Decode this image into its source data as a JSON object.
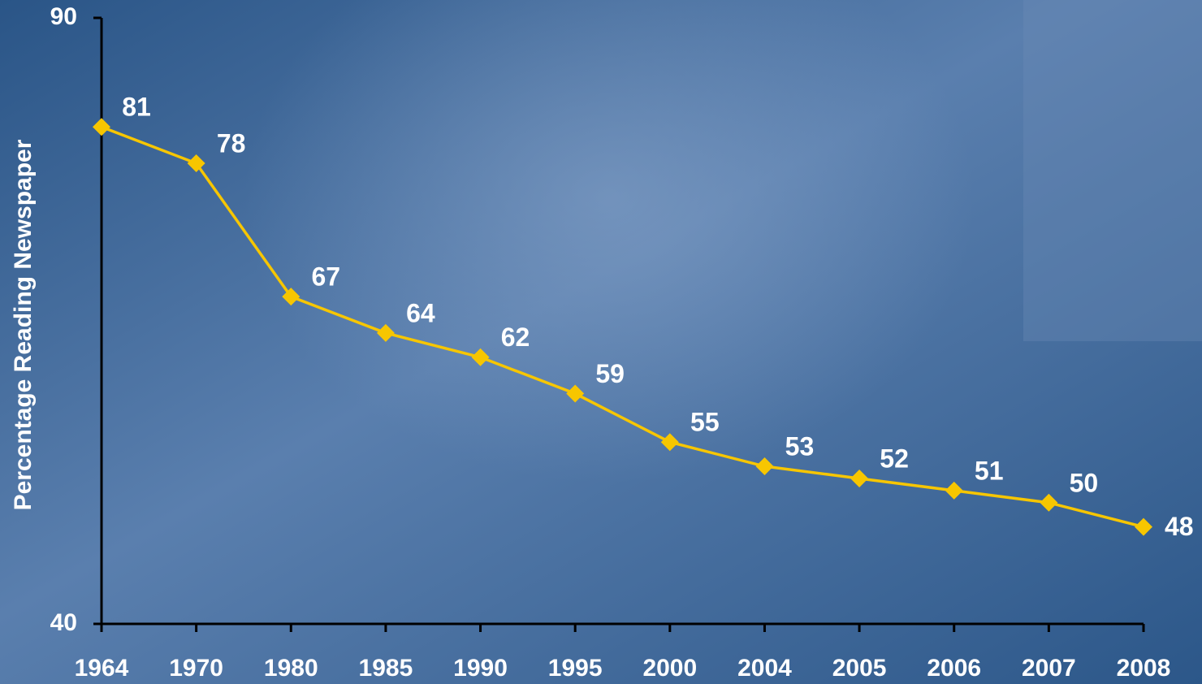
{
  "chart_data": {
    "type": "line",
    "y_label": "Percentage Reading Newspaper",
    "categories": [
      "1964",
      "1970",
      "1980",
      "1985",
      "1990",
      "1995",
      "2000",
      "2004",
      "2005",
      "2006",
      "2007",
      "2008"
    ],
    "series": [
      {
        "color": "#f7c600",
        "values": [
          81,
          78,
          67,
          64,
          62,
          59,
          55,
          53,
          52,
          51,
          50,
          48
        ]
      }
    ],
    "ylim": [
      40,
      90
    ],
    "yticks": [
      40,
      90
    ]
  }
}
